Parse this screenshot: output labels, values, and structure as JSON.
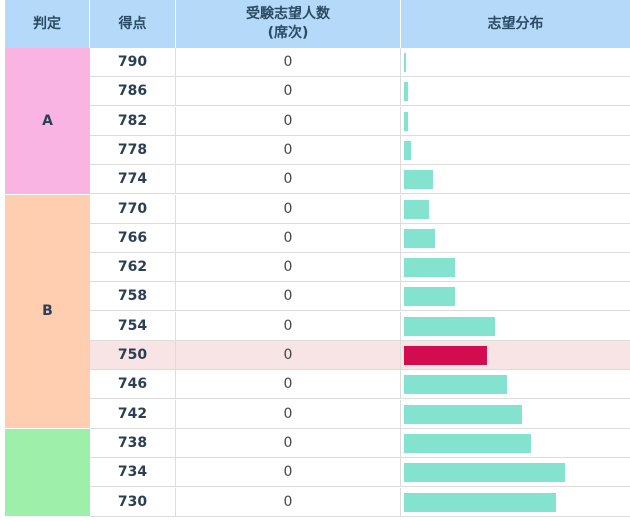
{
  "header": {
    "judge": "判定",
    "score": "得点",
    "count_line1": "受験志望人数",
    "count_line2": "(席次)",
    "distribution": "志望分布"
  },
  "colors": {
    "header_bg": "#b5daf9",
    "judge_A": "#f9b4e4",
    "judge_B": "#ffcdb0",
    "judge_C": "#9eefaa",
    "bar": "#84e3cf",
    "bar_highlight": "#d30c4f",
    "row_highlight": "#f8e4e4"
  },
  "judges": [
    {
      "label": "A",
      "rows": 5,
      "color": "#f9b4e4"
    },
    {
      "label": "B",
      "rows": 8,
      "color": "#ffcdb0"
    },
    {
      "label": "",
      "rows": 3,
      "color": "#9eefaa"
    }
  ],
  "rows": [
    {
      "score": "790",
      "count": "0",
      "share": 0.01,
      "highlight": false
    },
    {
      "score": "786",
      "count": "0",
      "share": 0.02,
      "highlight": false
    },
    {
      "score": "782",
      "count": "0",
      "share": 0.02,
      "highlight": false
    },
    {
      "score": "778",
      "count": "0",
      "share": 0.03,
      "highlight": false
    },
    {
      "score": "774",
      "count": "0",
      "share": 0.13,
      "highlight": false
    },
    {
      "score": "770",
      "count": "0",
      "share": 0.11,
      "highlight": false
    },
    {
      "score": "766",
      "count": "0",
      "share": 0.14,
      "highlight": false
    },
    {
      "score": "762",
      "count": "0",
      "share": 0.23,
      "highlight": false
    },
    {
      "score": "758",
      "count": "0",
      "share": 0.23,
      "highlight": false
    },
    {
      "score": "754",
      "count": "0",
      "share": 0.41,
      "highlight": false
    },
    {
      "score": "750",
      "count": "0",
      "share": 0.37,
      "highlight": true
    },
    {
      "score": "746",
      "count": "0",
      "share": 0.46,
      "highlight": false
    },
    {
      "score": "742",
      "count": "0",
      "share": 0.53,
      "highlight": false
    },
    {
      "score": "738",
      "count": "0",
      "share": 0.57,
      "highlight": false
    },
    {
      "score": "734",
      "count": "0",
      "share": 0.72,
      "highlight": false
    },
    {
      "score": "730",
      "count": "0",
      "share": 0.68,
      "highlight": false
    }
  ]
}
